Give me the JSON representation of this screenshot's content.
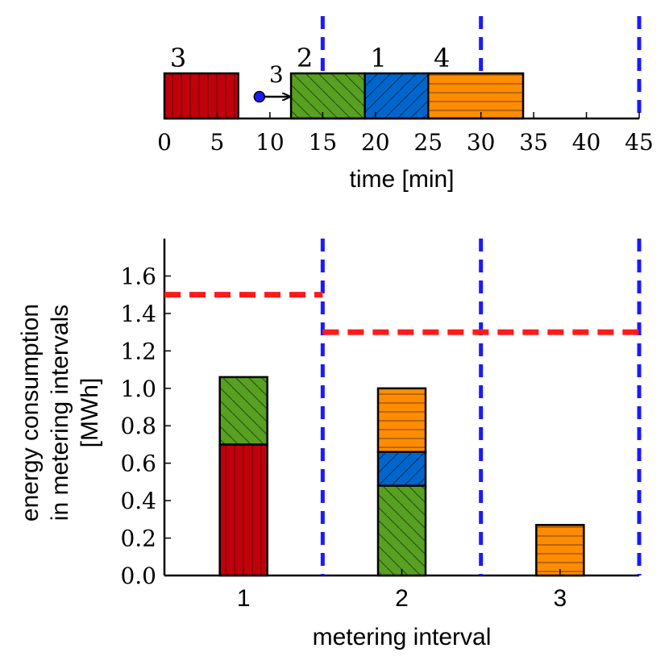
{
  "chart_data": [
    {
      "type": "gantt",
      "xlabel": "time [min]",
      "xlim": [
        0,
        45
      ],
      "xticks": [
        "0",
        "5",
        "10",
        "15",
        "20",
        "25",
        "30",
        "35",
        "40",
        "45"
      ],
      "boundaries": [
        15,
        30,
        45
      ],
      "tasks": [
        {
          "label": "3",
          "start": 0,
          "end": 7,
          "color": "#c0000b",
          "hatch": "vertical"
        },
        {
          "label": "2",
          "start": 12,
          "end": 19,
          "color": "#58a021",
          "hatch": "diagonal-down"
        },
        {
          "label": "1",
          "start": 19,
          "end": 25,
          "color": "#0066cc",
          "hatch": "diagonal-up"
        },
        {
          "label": "4",
          "start": 25,
          "end": 34,
          "color": "#ff8c00",
          "hatch": "horizontal"
        }
      ],
      "arrival": {
        "label": "3",
        "time": 9,
        "color": "#1a1aff"
      }
    },
    {
      "type": "stacked-bar",
      "xlabel": "metering interval",
      "ylabel_lines": [
        "energy consumption",
        "in metering intervals",
        "[MWh]"
      ],
      "ylim": [
        0,
        1.8
      ],
      "yticks": [
        "0.0",
        "0.2",
        "0.4",
        "0.6",
        "0.8",
        "1.0",
        "1.2",
        "1.4",
        "1.6"
      ],
      "categories": [
        "1",
        "2",
        "3"
      ],
      "stacks": [
        [
          {
            "task": "3",
            "value": 0.7
          },
          {
            "task": "2",
            "value": 0.36
          }
        ],
        [
          {
            "task": "2",
            "value": 0.48
          },
          {
            "task": "1",
            "value": 0.18
          },
          {
            "task": "4",
            "value": 0.34
          }
        ],
        [
          {
            "task": "4",
            "value": 0.27
          }
        ]
      ],
      "limits": [
        {
          "from": 0,
          "to": 1,
          "value": 1.5
        },
        {
          "from": 1,
          "to": 3,
          "value": 1.3
        }
      ],
      "colors": {
        "limit": "#ff1a1a",
        "boundary": "#1a1aff",
        "outline": "#000000"
      }
    }
  ]
}
